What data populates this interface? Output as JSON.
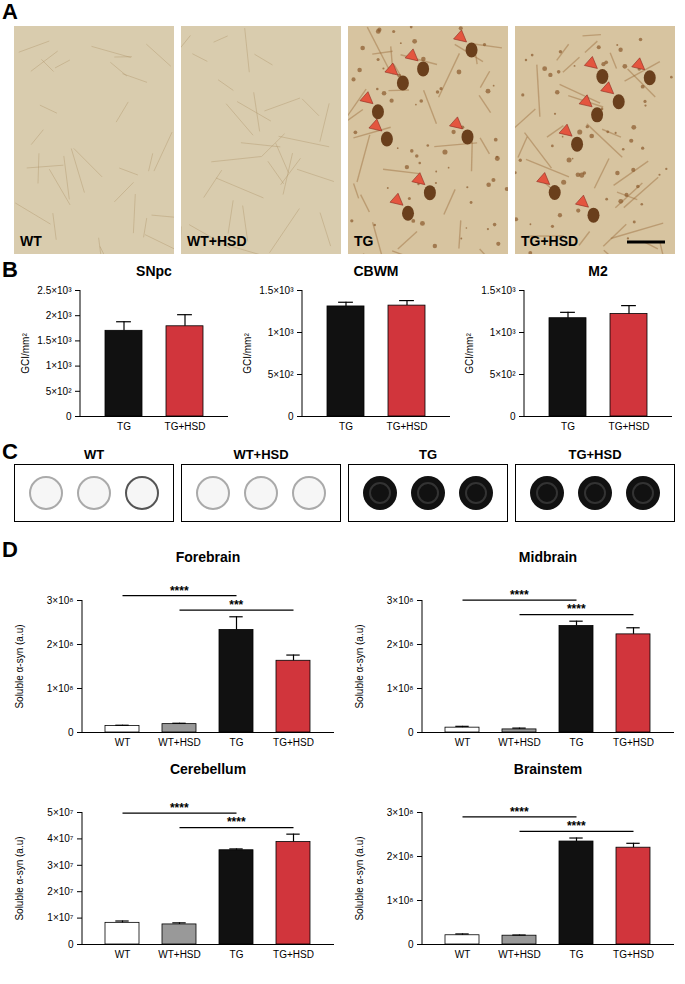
{
  "figure": {
    "panel_labels": [
      "A",
      "B",
      "C",
      "D"
    ]
  },
  "micrographs": {
    "labels": [
      "WT",
      "WT+HSD",
      "TG",
      "TG+HSD"
    ]
  },
  "dot_blot": {
    "labels": [
      "WT",
      "WT+HSD",
      "TG",
      "TG+HSD"
    ]
  },
  "chart_data": [
    {
      "type": "bar",
      "title": "SNpc",
      "y_label": "GCI/mm²",
      "categories": [
        "TG",
        "TG+HSD"
      ],
      "values": [
        1700,
        1790
      ],
      "error": [
        180,
        230
      ],
      "colors": [
        "#111111",
        "#d1353c"
      ],
      "ylim": [
        0,
        2500
      ],
      "yticks": [
        0,
        {
          "value": 500,
          "label": "5×10²"
        },
        {
          "value": 1000,
          "label": "1×10³"
        },
        {
          "value": 1500,
          "label": "1.5×10³"
        },
        {
          "value": 2000,
          "label": "2×10³"
        },
        {
          "value": 2500,
          "label": "2.5×10³"
        }
      ]
    },
    {
      "type": "bar",
      "title": "CBWM",
      "y_label": "GCI/mm²",
      "categories": [
        "TG",
        "TG+HSD"
      ],
      "values": [
        1310,
        1320
      ],
      "error": [
        50,
        60
      ],
      "colors": [
        "#111111",
        "#d1353c"
      ],
      "ylim": [
        0,
        1500
      ],
      "yticks": [
        0,
        {
          "value": 500,
          "label": "5×10²"
        },
        {
          "value": 1000,
          "label": "1×10³"
        },
        {
          "value": 1500,
          "label": "1.5×10³"
        }
      ]
    },
    {
      "type": "bar",
      "title": "M2",
      "y_label": "GCI/mm²",
      "categories": [
        "TG",
        "TG+HSD"
      ],
      "values": [
        1170,
        1220
      ],
      "error": [
        70,
        100
      ],
      "colors": [
        "#111111",
        "#d1353c"
      ],
      "ylim": [
        0,
        1500
      ],
      "yticks": [
        0,
        {
          "value": 500,
          "label": "5×10²"
        },
        {
          "value": 1000,
          "label": "1×10³"
        },
        {
          "value": 1500,
          "label": "1.5×10³"
        }
      ]
    },
    {
      "type": "bar",
      "title": "Forebrain",
      "y_label": "Soluble α-syn (a.u)",
      "categories": [
        "WT",
        "WT+HSD",
        "TG",
        "TG+HSD"
      ],
      "values": [
        15000000,
        19000000,
        233000000,
        163000000
      ],
      "error": [
        1500000,
        2000000,
        30000000,
        13000000
      ],
      "colors": [
        "#ffffff",
        "#999999",
        "#111111",
        "#d1353c"
      ],
      "ylim": [
        0,
        300000000
      ],
      "yticks": [
        0,
        {
          "value": 100000000,
          "label": "1×10⁸"
        },
        {
          "value": 200000000,
          "label": "2×10⁸"
        },
        {
          "value": 300000000,
          "label": "3×10⁸"
        }
      ],
      "comparisons": [
        {
          "from": "WT",
          "to": "TG",
          "label": "****"
        },
        {
          "from": "WT+HSD",
          "to": "TG+HSD",
          "label": "***"
        }
      ]
    },
    {
      "type": "bar",
      "title": "Midbrain",
      "y_label": "Soluble α-syn (a.u)",
      "categories": [
        "WT",
        "WT+HSD",
        "TG",
        "TG+HSD"
      ],
      "values": [
        11000000,
        7000000,
        242000000,
        223000000
      ],
      "error": [
        3000000,
        3000000,
        11000000,
        15000000
      ],
      "colors": [
        "#ffffff",
        "#999999",
        "#111111",
        "#d1353c"
      ],
      "ylim": [
        0,
        300000000
      ],
      "yticks": [
        0,
        {
          "value": 100000000,
          "label": "1×10⁸"
        },
        {
          "value": 200000000,
          "label": "2×10⁸"
        },
        {
          "value": 300000000,
          "label": "3×10⁸"
        }
      ],
      "comparisons": [
        {
          "from": "WT",
          "to": "TG",
          "label": "****"
        },
        {
          "from": "WT+HSD",
          "to": "TG+HSD",
          "label": "****"
        }
      ]
    },
    {
      "type": "bar",
      "title": "Cerebellum",
      "y_label": "Soluble α-syn (a.u)",
      "categories": [
        "WT",
        "WT+HSD",
        "TG",
        "TG+HSD"
      ],
      "values": [
        8200000,
        7600000,
        35700000,
        38800000
      ],
      "error": [
        700000,
        600000,
        500000,
        3000000
      ],
      "colors": [
        "#ffffff",
        "#999999",
        "#111111",
        "#d1353c"
      ],
      "ylim": [
        0,
        50000000
      ],
      "yticks": [
        0,
        {
          "value": 10000000,
          "label": "1×10⁷"
        },
        {
          "value": 20000000,
          "label": "2×10⁷"
        },
        {
          "value": 30000000,
          "label": "3×10⁷"
        },
        {
          "value": 40000000,
          "label": "4×10⁷"
        },
        {
          "value": 50000000,
          "label": "5×10⁷"
        }
      ],
      "comparisons": [
        {
          "from": "WT",
          "to": "TG",
          "label": "****"
        },
        {
          "from": "WT+HSD",
          "to": "TG+HSD",
          "label": "****"
        }
      ]
    },
    {
      "type": "bar",
      "title": "Brainstem",
      "y_label": "Soluble α-syn (a.u)",
      "categories": [
        "WT",
        "WT+HSD",
        "TG",
        "TG+HSD"
      ],
      "values": [
        21000000,
        20000000,
        234000000,
        220000000
      ],
      "error": [
        3000000,
        1500000,
        8000000,
        10000000
      ],
      "colors": [
        "#ffffff",
        "#999999",
        "#111111",
        "#d1353c"
      ],
      "ylim": [
        0,
        300000000
      ],
      "yticks": [
        0,
        {
          "value": 100000000,
          "label": "1×10⁸"
        },
        {
          "value": 200000000,
          "label": "2×10⁸"
        },
        {
          "value": 300000000,
          "label": "3×10⁸"
        }
      ],
      "comparisons": [
        {
          "from": "WT",
          "to": "TG",
          "label": "****"
        },
        {
          "from": "WT+HSD",
          "to": "TG+HSD",
          "label": "****"
        }
      ]
    }
  ]
}
